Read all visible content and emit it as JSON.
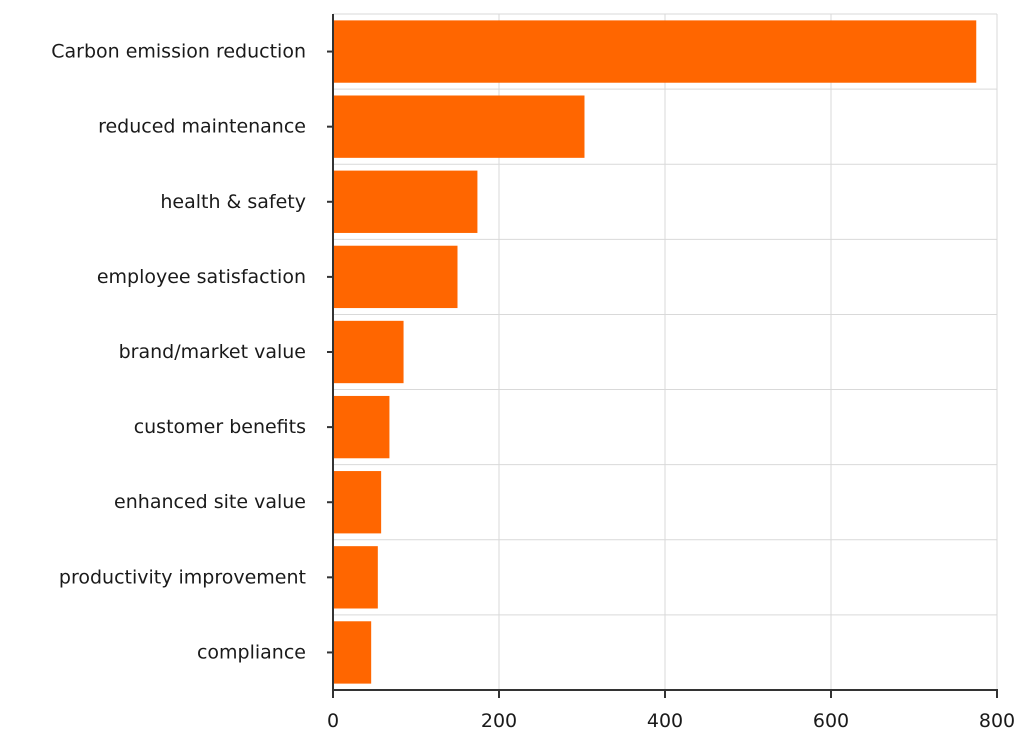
{
  "chart_data": {
    "type": "bar",
    "orientation": "horizontal",
    "title": "",
    "xlabel": "",
    "ylabel": "",
    "categories": [
      "Carbon emission reduction",
      "reduced maintenance",
      "health & safety",
      "employee satisfaction",
      "brand/market value",
      "customer benefits",
      "enhanced site value",
      "productivity improvement",
      "compliance"
    ],
    "values": [
      775,
      303,
      174,
      150,
      85,
      68,
      58,
      54,
      46
    ],
    "xlim": [
      0,
      800
    ],
    "xticks": [
      0,
      200,
      400,
      600,
      800
    ],
    "xtick_labels": [
      "0",
      "200",
      "400",
      "600",
      "800"
    ],
    "grid": true,
    "legend": "none",
    "bar_color": "#ff6600",
    "grid_color": "#d9d9d9",
    "axis_color": "#333333"
  }
}
